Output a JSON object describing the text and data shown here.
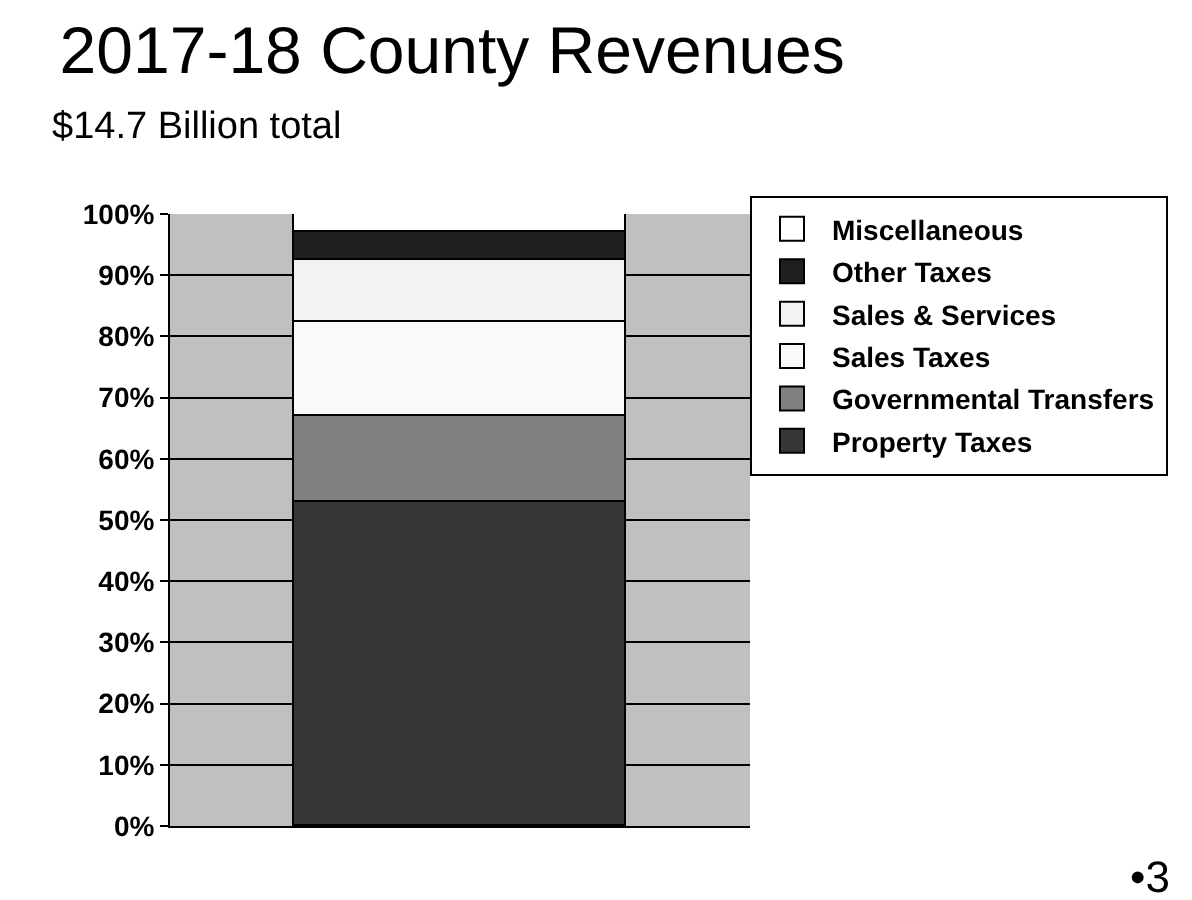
{
  "chart_data": {
    "type": "bar",
    "title": "2017-18 County Revenues",
    "subtitle": "$14.7 Billion total",
    "categories": [
      null
    ],
    "stacked": true,
    "series": [
      {
        "name": "Property Taxes",
        "color": "#363636",
        "values": [
          53
        ]
      },
      {
        "name": "Governmental Transfers",
        "color": "#808080",
        "values": [
          14
        ]
      },
      {
        "name": "Sales Taxes",
        "color": "#fafafa",
        "values": [
          15.5
        ]
      },
      {
        "name": "Sales & Services",
        "color": "#f2f2f2",
        "values": [
          10
        ]
      },
      {
        "name": "Other Taxes",
        "color": "#1f1f1f",
        "values": [
          4.5
        ]
      },
      {
        "name": "Miscellaneous",
        "color": "#ffffff",
        "values": [
          3
        ]
      }
    ],
    "ylim": [
      0,
      100
    ],
    "yticks": [
      {
        "value": 0,
        "label": "0%"
      },
      {
        "value": 10,
        "label": "10%"
      },
      {
        "value": 20,
        "label": "20%"
      },
      {
        "value": 30,
        "label": "30%"
      },
      {
        "value": 40,
        "label": "40%"
      },
      {
        "value": 50,
        "label": "50%"
      },
      {
        "value": 60,
        "label": "60%"
      },
      {
        "value": 70,
        "label": "70%"
      },
      {
        "value": 80,
        "label": "80%"
      },
      {
        "value": 90,
        "label": "90%"
      },
      {
        "value": 100,
        "label": "100%"
      }
    ],
    "grid": "y",
    "legend": "right",
    "annotations": [
      "•3"
    ]
  }
}
